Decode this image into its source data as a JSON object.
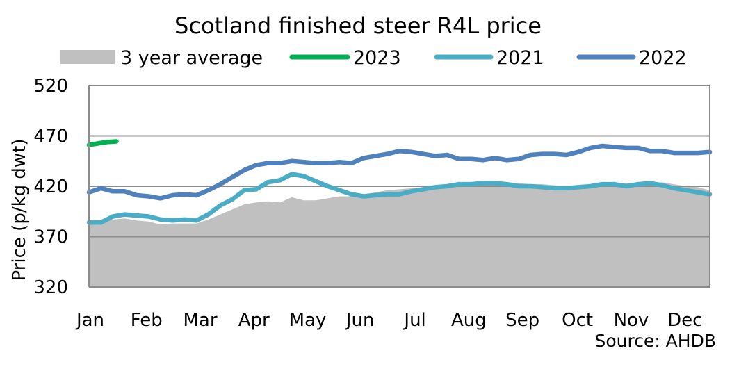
{
  "chart_data": {
    "type": "area",
    "title": "Scotland finished steer R4L price",
    "ylabel": "Price (p/kg dwt)",
    "xlabel": "",
    "source": "Source: AHDB",
    "ylim": [
      320,
      520
    ],
    "yticks": [
      320,
      370,
      420,
      470,
      520
    ],
    "xlim": [
      0,
      52
    ],
    "grid": "horizontal",
    "legend_position": "top",
    "categories": [
      "Jan",
      "Feb",
      "Mar",
      "Apr",
      "May",
      "Jun",
      "Jul",
      "Aug",
      "Sep",
      "Oct",
      "Nov",
      "Dec"
    ],
    "category_x": [
      0,
      4.7,
      9.2,
      13.7,
      18.2,
      22.6,
      27.2,
      31.7,
      36.2,
      40.8,
      45.3,
      49.8
    ],
    "legend": [
      {
        "label": "3 year average",
        "symbol": "area",
        "color": "#c0c0c0"
      },
      {
        "label": "2023",
        "symbol": "line",
        "color": "#00b050"
      },
      {
        "label": "2021",
        "symbol": "line",
        "color": "#4bacc6"
      },
      {
        "label": "2022",
        "symbol": "line",
        "color": "#4f81bd"
      }
    ],
    "series": [
      {
        "name": "3 year average",
        "kind": "area",
        "color": "#c0c0c0",
        "x": [
          0,
          1,
          2,
          3,
          4,
          5,
          6,
          7,
          8,
          9,
          10,
          11,
          12,
          13,
          14,
          15,
          16,
          17,
          18,
          19,
          20,
          21,
          22,
          23,
          24,
          25,
          26,
          27,
          28,
          29,
          30,
          31,
          32,
          33,
          34,
          35,
          36,
          37,
          38,
          39,
          40,
          41,
          42,
          43,
          44,
          45,
          46,
          47,
          48,
          49,
          50,
          51,
          52
        ],
        "values": [
          383,
          383,
          387,
          388,
          386,
          385,
          382,
          383,
          383,
          383,
          387,
          392,
          397,
          402,
          404,
          405,
          404,
          409,
          406,
          406,
          408,
          410,
          410,
          412,
          414,
          416,
          417,
          418,
          419,
          420,
          422,
          423,
          423,
          424,
          424,
          424,
          423,
          422,
          422,
          421,
          420,
          420,
          421,
          422,
          423,
          423,
          422,
          423,
          424,
          422,
          420,
          419,
          416
        ]
      },
      {
        "name": "2023",
        "kind": "line",
        "color": "#00b050",
        "x": [
          0,
          1,
          1.6,
          2.3
        ],
        "values": [
          461,
          463,
          464,
          464.5
        ]
      },
      {
        "name": "2021",
        "kind": "line",
        "color": "#4bacc6",
        "x": [
          0,
          1,
          2,
          3,
          4,
          5,
          6,
          7,
          8,
          9,
          10,
          11,
          12,
          13,
          14,
          15,
          16,
          17,
          18,
          19,
          20,
          21,
          22,
          23,
          24,
          25,
          26,
          27,
          28,
          29,
          30,
          31,
          32,
          33,
          34,
          35,
          36,
          37,
          38,
          39,
          40,
          41,
          42,
          43,
          44,
          45,
          46,
          47,
          48,
          49,
          50,
          51,
          52
        ],
        "values": [
          384,
          384,
          390,
          392,
          391,
          390,
          387,
          386,
          387,
          386,
          392,
          401,
          407,
          416,
          417,
          424,
          426,
          432,
          430,
          425,
          420,
          416,
          412,
          410,
          411,
          412,
          412,
          415,
          417,
          419,
          420,
          422,
          422,
          423,
          423,
          422,
          420,
          420,
          419,
          418,
          418,
          419,
          420,
          422,
          422,
          420,
          422,
          423,
          421,
          418,
          416,
          414,
          412
        ]
      },
      {
        "name": "2022",
        "kind": "line",
        "color": "#4f81bd",
        "x": [
          0,
          1,
          2,
          3,
          4,
          5,
          6,
          7,
          8,
          9,
          10,
          11,
          12,
          13,
          14,
          15,
          16,
          17,
          18,
          19,
          20,
          21,
          22,
          23,
          24,
          25,
          26,
          27,
          28,
          29,
          30,
          31,
          32,
          33,
          34,
          35,
          36,
          37,
          38,
          39,
          40,
          41,
          42,
          43,
          44,
          45,
          46,
          47,
          48,
          49,
          50,
          51,
          52
        ],
        "values": [
          414,
          418,
          415,
          415,
          411,
          410,
          408,
          411,
          412,
          411,
          416,
          422,
          429,
          436,
          441,
          443,
          443,
          445,
          444,
          443,
          443,
          444,
          443,
          448,
          450,
          452,
          455,
          454,
          452,
          450,
          451,
          447,
          447,
          446,
          448,
          446,
          447,
          451,
          452,
          452,
          451,
          454,
          458,
          460,
          459,
          458,
          458,
          455,
          455,
          453,
          453,
          453,
          454
        ]
      }
    ]
  }
}
